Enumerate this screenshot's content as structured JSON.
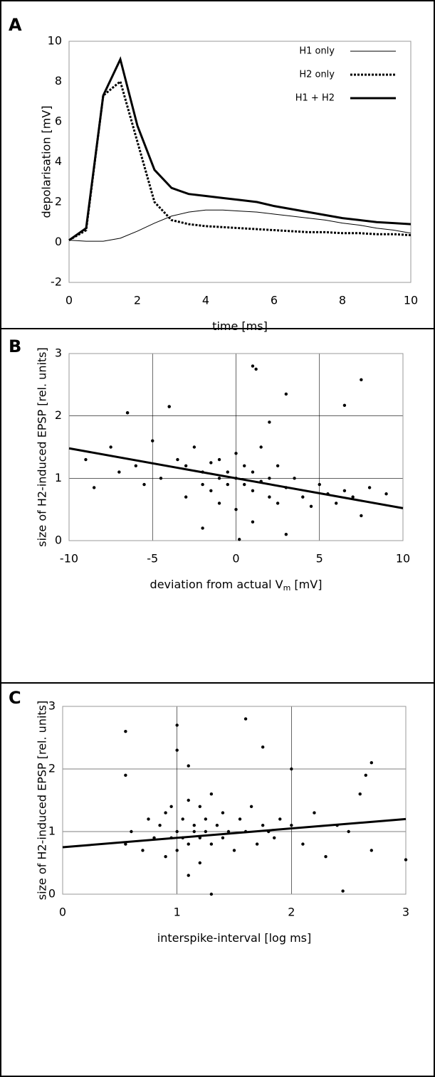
{
  "chart_data": [
    {
      "type": "line",
      "panel": "A",
      "ylabel": "depolarisation [mV]",
      "xlabel": [
        "time [ms]"
      ],
      "x": [
        0,
        0.5,
        1,
        1.5,
        2,
        2.5,
        3,
        3.5,
        4,
        4.5,
        5,
        5.5,
        6,
        6.5,
        7,
        7.5,
        8,
        8.5,
        9,
        9.5,
        10
      ],
      "series": [
        {
          "name": "H1 only",
          "color": "#000000",
          "width": 1,
          "style": "solid",
          "values": [
            0.1,
            0.05,
            0.05,
            0.2,
            0.55,
            0.95,
            1.3,
            1.5,
            1.6,
            1.6,
            1.55,
            1.5,
            1.4,
            1.3,
            1.2,
            1.1,
            0.95,
            0.85,
            0.7,
            0.6,
            0.45
          ]
        },
        {
          "name": "H2 only",
          "color": "#000000",
          "width": 3,
          "style": "dotted",
          "values": [
            0.1,
            0.6,
            7.3,
            8.0,
            5.0,
            2.0,
            1.1,
            0.9,
            0.8,
            0.75,
            0.7,
            0.65,
            0.6,
            0.55,
            0.5,
            0.5,
            0.45,
            0.45,
            0.4,
            0.4,
            0.35
          ]
        },
        {
          "name": "H1 + H2",
          "color": "#000000",
          "width": 3,
          "style": "solid",
          "values": [
            0.1,
            0.7,
            7.3,
            9.1,
            5.8,
            3.6,
            2.7,
            2.4,
            2.3,
            2.2,
            2.1,
            2.0,
            1.8,
            1.65,
            1.5,
            1.35,
            1.2,
            1.1,
            1.0,
            0.95,
            0.9
          ]
        }
      ],
      "xlim": [
        0,
        10
      ],
      "xticks": [
        0,
        2,
        4,
        6,
        8,
        10
      ],
      "ylim": [
        -2,
        10
      ],
      "yticks": [
        -2,
        0,
        2,
        4,
        6,
        8,
        10
      ],
      "grid": false,
      "legend": "top-right"
    },
    {
      "type": "scatter",
      "panel": "B",
      "ylabel": "size of H2-induced EPSP [rel. units]",
      "xlabel": [
        "deviation from actual V",
        "m",
        " [mV]"
      ],
      "series": [
        {
          "color": "#000000",
          "x": [
            -9,
            -8.5,
            -7.5,
            -7,
            -6.5,
            -6,
            -5.5,
            -5,
            -4.5,
            -4,
            -3.5,
            -3,
            -3,
            -2.5,
            -2,
            -2,
            -1.5,
            -1.5,
            -1,
            -1,
            -1,
            -0.5,
            -0.5,
            0,
            0,
            0,
            0.5,
            0.5,
            1,
            1,
            1,
            1.5,
            1.5,
            2,
            2,
            2.5,
            2.5,
            3,
            3,
            3.5,
            4,
            4.5,
            5,
            5.5,
            6,
            6.5,
            7,
            7.5,
            8,
            9,
            1,
            1.2,
            7.5,
            3,
            6.5,
            -6.5,
            -4,
            0.2,
            2,
            -2
          ],
          "values": [
            1.3,
            0.85,
            1.5,
            1.1,
            2.05,
            1.2,
            0.9,
            1.6,
            1.0,
            2.15,
            1.3,
            0.7,
            1.2,
            1.5,
            0.9,
            1.1,
            1.25,
            0.8,
            1.0,
            1.3,
            0.6,
            1.1,
            0.9,
            1.0,
            1.4,
            0.5,
            0.9,
            1.2,
            0.8,
            1.1,
            0.3,
            0.95,
            1.5,
            0.7,
            1.0,
            0.6,
            1.2,
            0.85,
            0.1,
            1.0,
            0.7,
            0.55,
            0.9,
            0.75,
            0.6,
            0.8,
            0.7,
            0.4,
            0.85,
            0.75,
            2.8,
            2.75,
            2.58,
            2.35,
            2.17,
            2.05,
            2.15,
            0.02,
            1.9,
            0.2
          ]
        }
      ],
      "fit": {
        "x": [
          -10,
          10
        ],
        "values": [
          1.48,
          0.52
        ]
      },
      "xlim": [
        -10,
        10
      ],
      "xticks": [
        -10,
        -5,
        0,
        5,
        10
      ],
      "ylim": [
        0,
        3
      ],
      "yticks": [
        0,
        1,
        2,
        3
      ],
      "grid": true
    },
    {
      "type": "scatter",
      "panel": "C",
      "ylabel": "size of H2-induced EPSP [rel. units]",
      "xlabel": [
        "interspike-interval [log ms]"
      ],
      "series": [
        {
          "color": "#000000",
          "x": [
            0.55,
            0.55,
            0.6,
            0.7,
            0.75,
            0.8,
            0.85,
            0.9,
            0.9,
            0.95,
            0.95,
            1.0,
            1.0,
            1.0,
            1.05,
            1.05,
            1.1,
            1.1,
            1.1,
            1.15,
            1.15,
            1.2,
            1.2,
            1.2,
            1.25,
            1.25,
            1.3,
            1.3,
            1.35,
            1.4,
            1.4,
            1.45,
            1.5,
            1.55,
            1.6,
            1.65,
            1.7,
            1.75,
            1.8,
            1.85,
            1.9,
            2.0,
            2.1,
            2.2,
            2.3,
            2.4,
            2.5,
            2.6,
            2.65,
            2.7,
            2.7,
            3.0,
            0.55,
            1.0,
            1.1,
            1.3,
            1.6,
            1.75,
            2.0,
            2.45
          ],
          "values": [
            2.6,
            0.8,
            1.0,
            0.7,
            1.2,
            0.9,
            1.1,
            0.6,
            1.3,
            0.9,
            1.4,
            1.0,
            0.7,
            2.7,
            0.9,
            1.2,
            0.8,
            1.5,
            0.3,
            1.0,
            1.1,
            0.9,
            1.4,
            0.5,
            1.0,
            1.2,
            0.8,
            1.6,
            1.1,
            0.9,
            1.3,
            1.0,
            0.7,
            1.2,
            1.0,
            1.4,
            0.8,
            1.1,
            1.0,
            0.9,
            1.2,
            1.1,
            0.8,
            1.3,
            0.6,
            1.1,
            1.0,
            1.6,
            1.9,
            2.1,
            0.7,
            0.55,
            1.9,
            2.3,
            2.05,
            0.0,
            2.8,
            2.35,
            2.0,
            0.05
          ]
        }
      ],
      "fit": {
        "x": [
          0,
          3
        ],
        "values": [
          0.75,
          1.2
        ]
      },
      "xlim": [
        0,
        3
      ],
      "xticks": [
        0,
        1,
        2,
        3
      ],
      "ylim": [
        0,
        3
      ],
      "yticks": [
        0,
        1,
        2,
        3
      ],
      "grid": true
    }
  ]
}
